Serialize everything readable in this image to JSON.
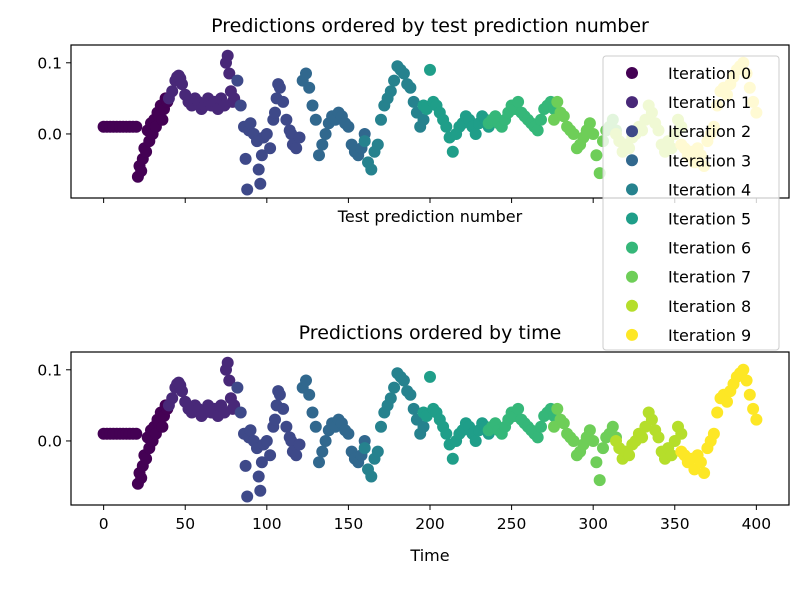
{
  "chart_data": [
    {
      "type": "scatter",
      "title": "Predictions ordered by test prediction number",
      "xlabel": "Test prediction number",
      "ylabel": "",
      "xlim": [
        -20,
        420
      ],
      "ylim": [
        -0.09,
        0.125
      ],
      "y_ticks": [
        0.1,
        0.0
      ],
      "y_tick_labels": [
        "0.1",
        "0.0"
      ],
      "x_ticks": [
        0,
        50,
        100,
        150,
        200,
        250,
        300,
        350,
        400
      ],
      "x_tick_labels_shown": false,
      "grid": false,
      "legend": {
        "placement": "upper-right",
        "entries": [
          "Iteration 0",
          "Iteration 1",
          "Iteration 2",
          "Iteration 3",
          "Iteration 4",
          "Iteration 5",
          "Iteration 6",
          "Iteration 7",
          "Iteration 8",
          "Iteration 9"
        ]
      }
    },
    {
      "type": "scatter",
      "title": "Predictions ordered by time",
      "xlabel": "Time",
      "ylabel": "",
      "xlim": [
        -20,
        420
      ],
      "ylim": [
        -0.09,
        0.125
      ],
      "y_ticks": [
        0.1,
        0.0
      ],
      "y_tick_labels": [
        "0.1",
        "0.0"
      ],
      "x_ticks": [
        0,
        50,
        100,
        150,
        200,
        250,
        300,
        350,
        400
      ],
      "x_tick_labels": [
        "0",
        "50",
        "100",
        "150",
        "200",
        "250",
        "300",
        "350",
        "400"
      ],
      "grid": false
    }
  ],
  "series": [
    {
      "name": "Iteration 0",
      "color": "#440154",
      "x": [
        0,
        2,
        4,
        6,
        8,
        10,
        12,
        14,
        16,
        18,
        20,
        21,
        22,
        23,
        24,
        25,
        26,
        27,
        28,
        29,
        30,
        31,
        32,
        33,
        34,
        35,
        36,
        37,
        38,
        39
      ],
      "y": [
        0.01,
        0.01,
        0.01,
        0.01,
        0.01,
        0.01,
        0.01,
        0.01,
        0.01,
        0.01,
        0.01,
        -0.06,
        -0.045,
        -0.052,
        -0.035,
        -0.02,
        -0.025,
        0.005,
        -0.01,
        0.015,
        0.0,
        0.02,
        0.01,
        0.03,
        0.025,
        0.04,
        0.02,
        0.035,
        0.05,
        0.045
      ]
    },
    {
      "name": "Iteration 1",
      "color": "#482878",
      "x": [
        40,
        42,
        44,
        45,
        46,
        47,
        48,
        50,
        52,
        54,
        56,
        58,
        60,
        62,
        64,
        66,
        68,
        70,
        72,
        74,
        75,
        76,
        77,
        78,
        79,
        80
      ],
      "y": [
        0.05,
        0.06,
        0.075,
        0.08,
        0.082,
        0.078,
        0.07,
        0.055,
        0.045,
        0.04,
        0.05,
        0.045,
        0.035,
        0.04,
        0.05,
        0.04,
        0.045,
        0.035,
        0.05,
        0.04,
        0.1,
        0.11,
        0.085,
        0.06,
        0.045,
        0.05
      ]
    },
    {
      "name": "Iteration 2",
      "color": "#3e4989",
      "x": [
        82,
        84,
        86,
        87,
        88,
        89,
        90,
        92,
        94,
        95,
        96,
        97,
        98,
        100,
        102,
        104,
        105,
        106,
        107,
        108,
        110,
        112,
        114,
        115,
        116,
        118,
        120
      ],
      "y": [
        0.075,
        0.04,
        0.01,
        -0.035,
        -0.078,
        0.005,
        0.015,
        0.0,
        -0.01,
        -0.05,
        -0.07,
        -0.03,
        -0.005,
        0.0,
        -0.02,
        0.02,
        0.03,
        0.05,
        0.07,
        0.065,
        0.045,
        0.02,
        0.005,
        0.0,
        -0.015,
        -0.02,
        -0.005
      ]
    },
    {
      "name": "Iteration 3",
      "color": "#31688e",
      "x": [
        122,
        124,
        126,
        128,
        130,
        132,
        134,
        136,
        138,
        140,
        142,
        144,
        146,
        148,
        150,
        152,
        154,
        156,
        158,
        160
      ],
      "y": [
        0.075,
        0.085,
        0.065,
        0.04,
        0.02,
        -0.03,
        -0.015,
        0.0,
        0.015,
        0.025,
        0.02,
        0.03,
        0.025,
        0.015,
        0.01,
        -0.015,
        -0.025,
        -0.03,
        -0.02,
        0.0
      ]
    },
    {
      "name": "Iteration 4",
      "color": "#26828e",
      "x": [
        160,
        162,
        164,
        166,
        168,
        170,
        172,
        174,
        176,
        178,
        180,
        182,
        184,
        186,
        188,
        190,
        192,
        194,
        196
      ],
      "y": [
        -0.01,
        -0.04,
        -0.05,
        -0.025,
        -0.015,
        0.02,
        0.04,
        0.05,
        0.06,
        0.075,
        0.095,
        0.09,
        0.085,
        0.07,
        0.065,
        0.045,
        0.03,
        0.01,
        0.02
      ]
    },
    {
      "name": "Iteration 5",
      "color": "#1f9e89",
      "x": [
        196,
        198,
        200,
        202,
        204,
        206,
        208,
        210,
        212,
        214,
        216,
        218,
        220,
        222,
        224,
        226,
        228,
        230,
        232,
        234,
        236
      ],
      "y": [
        0.04,
        0.035,
        0.09,
        0.045,
        0.04,
        0.03,
        0.02,
        0.01,
        -0.005,
        -0.025,
        0.0,
        0.01,
        0.015,
        0.025,
        0.02,
        0.01,
        0.0,
        0.015,
        0.025,
        0.02,
        0.01
      ]
    },
    {
      "name": "Iteration 6",
      "color": "#35b779",
      "x": [
        236,
        238,
        240,
        242,
        244,
        246,
        248,
        250,
        252,
        254,
        256,
        258,
        260,
        262,
        264,
        266,
        268,
        270,
        272,
        274,
        276
      ],
      "y": [
        0.015,
        0.02,
        0.025,
        0.015,
        0.01,
        0.02,
        0.03,
        0.04,
        0.035,
        0.045,
        0.03,
        0.025,
        0.02,
        0.015,
        0.01,
        0.005,
        0.02,
        0.035,
        0.04,
        0.045,
        0.035
      ]
    },
    {
      "name": "Iteration 7",
      "color": "#6ece58",
      "x": [
        276,
        278,
        280,
        282,
        284,
        286,
        288,
        290,
        292,
        294,
        296,
        298,
        300,
        302,
        304,
        306,
        308,
        310,
        312,
        314
      ],
      "y": [
        0.02,
        0.045,
        0.03,
        0.025,
        0.01,
        0.005,
        0.0,
        -0.02,
        -0.015,
        -0.005,
        0.005,
        0.015,
        0.0,
        -0.03,
        -0.055,
        -0.01,
        0.005,
        0.01,
        0.02,
        0.005
      ]
    },
    {
      "name": "Iteration 8",
      "color": "#b5de2b",
      "x": [
        314,
        316,
        318,
        320,
        322,
        324,
        326,
        328,
        330,
        332,
        334,
        336,
        338,
        340,
        342,
        344,
        346,
        348,
        350,
        352,
        354
      ],
      "y": [
        0.0,
        -0.01,
        -0.025,
        -0.015,
        -0.02,
        -0.005,
        0.0,
        0.01,
        0.005,
        0.02,
        0.04,
        0.03,
        0.015,
        0.005,
        -0.015,
        -0.025,
        -0.01,
        -0.02,
        0.0,
        0.02,
        0.01
      ]
    },
    {
      "name": "Iteration 9",
      "color": "#fde725",
      "x": [
        354,
        356,
        358,
        360,
        362,
        364,
        366,
        368,
        370,
        372,
        374,
        376,
        378,
        380,
        382,
        384,
        386,
        388,
        390,
        392,
        394,
        396,
        398,
        400
      ],
      "y": [
        -0.015,
        -0.02,
        -0.03,
        -0.025,
        -0.04,
        -0.02,
        -0.03,
        -0.045,
        -0.01,
        0.0,
        0.01,
        0.04,
        0.06,
        0.065,
        0.055,
        0.07,
        0.08,
        0.09,
        0.095,
        0.1,
        0.085,
        0.065,
        0.045,
        0.03
      ]
    }
  ]
}
